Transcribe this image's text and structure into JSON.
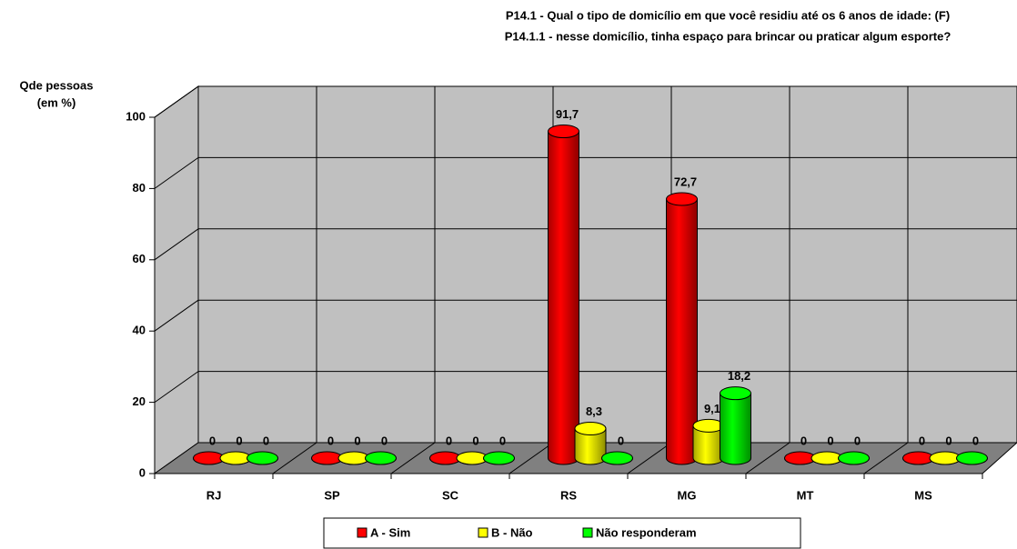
{
  "chart_data": {
    "type": "bar3d",
    "title": [
      "P14.1 - Qual o tipo de domicílio em que você residiu até os 6 anos de idade: (F)",
      "P14.1.1 - nesse domicílio, tinha espaço para brincar ou praticar algum esporte?"
    ],
    "y_label": [
      "Qde pessoas",
      "(em %)"
    ],
    "categories": [
      "RJ",
      "SP",
      "SC",
      "RS",
      "MG",
      "MT",
      "MS"
    ],
    "series": [
      {
        "name": "A - Sim",
        "color": "#ff0000",
        "values": [
          0,
          0,
          0,
          91.7,
          72.7,
          0,
          0
        ],
        "value_labels": [
          "0",
          "0",
          "0",
          "91,7",
          "72,7",
          "0",
          "0"
        ]
      },
      {
        "name": "B - Não",
        "color": "#ffff00",
        "values": [
          0,
          0,
          0,
          8.3,
          9.1,
          0,
          0
        ],
        "value_labels": [
          "0",
          "0",
          "0",
          "8,3",
          "9,1",
          "0",
          "0"
        ]
      },
      {
        "name": "Não responderam",
        "color": "#00ff00",
        "values": [
          0,
          0,
          0,
          0,
          18.2,
          0,
          0
        ],
        "value_labels": [
          "0",
          "0",
          "0",
          "0",
          "18,2",
          "0",
          "0"
        ]
      }
    ],
    "ylim": [
      0,
      100
    ],
    "yticks": [
      0,
      20,
      40,
      60,
      80,
      100
    ],
    "grid": true
  }
}
